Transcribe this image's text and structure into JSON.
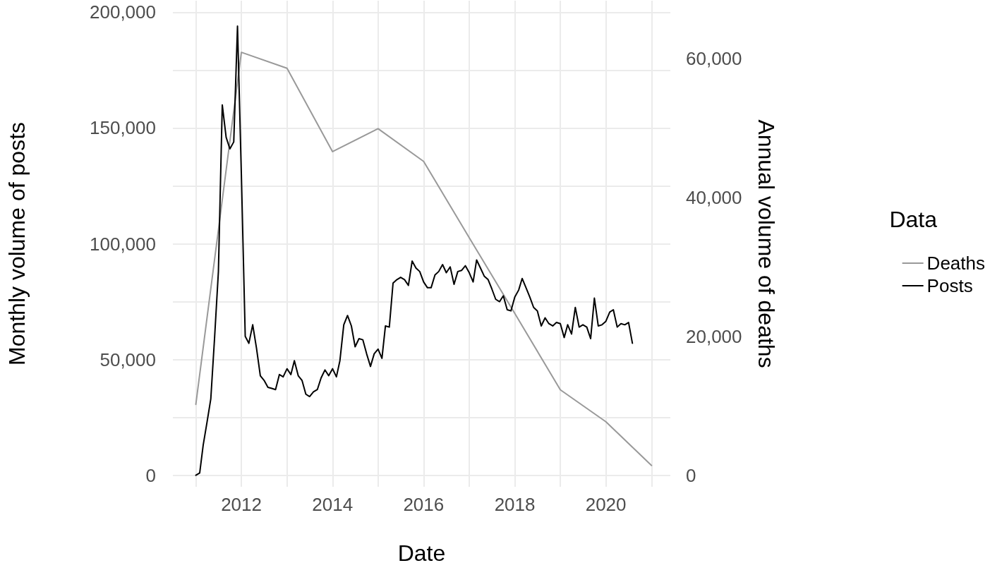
{
  "chart_data": {
    "type": "line",
    "xlabel": "Date",
    "ylabel": "Monthly volume of posts",
    "y2label": "Annual volume of deaths",
    "legend_title": "Data",
    "legend": "right",
    "grid": true,
    "xlim": [
      "2010-07",
      "2021-06"
    ],
    "xticks": [
      {
        "value": "2011",
        "label": null
      },
      "2012",
      {
        "value": "2013",
        "label": null
      },
      "2014",
      {
        "value": "2015",
        "label": null
      },
      "2016",
      {
        "value": "2017",
        "label": null
      },
      "2018",
      {
        "value": "2019",
        "label": null
      },
      "2020",
      {
        "value": "2021",
        "label": null
      }
    ],
    "ylim": [
      -5000,
      205000
    ],
    "yticks": [
      0,
      {
        "value": 25000,
        "label": null
      },
      {
        "value": 50000,
        "label": "50,000"
      },
      {
        "value": 75000,
        "label": null
      },
      {
        "value": 100000,
        "label": "100,000"
      },
      {
        "value": 125000,
        "label": null
      },
      {
        "value": 150000,
        "label": "150,000"
      },
      {
        "value": 175000,
        "label": null
      },
      {
        "value": 200000,
        "label": "200,000"
      }
    ],
    "y2lim": [
      -1667,
      68333
    ],
    "y2ticks": [
      0,
      {
        "value": 20000,
        "label": "20,000"
      },
      {
        "value": 40000,
        "label": "40,000"
      },
      {
        "value": 60000,
        "label": "60,000"
      }
    ],
    "series": [
      {
        "name": "Deaths",
        "color": "#999999",
        "axis": "y2",
        "x": [
          "2011",
          "2012",
          "2013",
          "2014",
          "2015",
          "2016",
          "2017",
          "2018",
          "2019",
          "2020",
          "2021"
        ],
        "values": [
          10200,
          60900,
          58600,
          46600,
          49900,
          45200,
          34200,
          23300,
          12300,
          7700,
          1400
        ]
      },
      {
        "name": "Posts",
        "color": "#000000",
        "axis": "y",
        "x": [
          "2011-01",
          "2011-02",
          "2011-03",
          "2011-04",
          "2011-05",
          "2011-06",
          "2011-07",
          "2011-08",
          "2011-09",
          "2011-10",
          "2011-11",
          "2011-12",
          "2012-01",
          "2012-02",
          "2012-03",
          "2012-04",
          "2012-05",
          "2012-06",
          "2012-07",
          "2012-08",
          "2012-09",
          "2012-10",
          "2012-11",
          "2012-12",
          "2013-01",
          "2013-02",
          "2013-03",
          "2013-04",
          "2013-05",
          "2013-06",
          "2013-07",
          "2013-08",
          "2013-09",
          "2013-10",
          "2013-11",
          "2013-12",
          "2014-01",
          "2014-02",
          "2014-03",
          "2014-04",
          "2014-05",
          "2014-06",
          "2014-07",
          "2014-08",
          "2014-09",
          "2014-10",
          "2014-11",
          "2014-12",
          "2015-01",
          "2015-02",
          "2015-03",
          "2015-04",
          "2015-05",
          "2015-06",
          "2015-07",
          "2015-08",
          "2015-09",
          "2015-10",
          "2015-11",
          "2015-12",
          "2016-01",
          "2016-02",
          "2016-03",
          "2016-04",
          "2016-05",
          "2016-06",
          "2016-07",
          "2016-08",
          "2016-09",
          "2016-10",
          "2016-11",
          "2016-12",
          "2017-01",
          "2017-02",
          "2017-03",
          "2017-04",
          "2017-05",
          "2017-06",
          "2017-07",
          "2017-08",
          "2017-09",
          "2017-10",
          "2017-11",
          "2017-12",
          "2018-01",
          "2018-02",
          "2018-03",
          "2018-04",
          "2018-05",
          "2018-06",
          "2018-07",
          "2018-08",
          "2018-09",
          "2018-10",
          "2018-11",
          "2018-12",
          "2019-01",
          "2019-02",
          "2019-03",
          "2019-04",
          "2019-05",
          "2019-06",
          "2019-07",
          "2019-08",
          "2019-09",
          "2019-10",
          "2019-11",
          "2019-12",
          "2020-01",
          "2020-02",
          "2020-03",
          "2020-04",
          "2020-05",
          "2020-06",
          "2020-07",
          "2020-08"
        ],
        "values": [
          0,
          1000,
          13000,
          23000,
          33000,
          60000,
          88000,
          160000,
          146000,
          141000,
          144000,
          194000,
          130000,
          60000,
          57000,
          65000,
          55000,
          43000,
          41000,
          38000,
          37500,
          37000,
          43500,
          42500,
          46000,
          43500,
          49500,
          43000,
          41000,
          35000,
          34000,
          36000,
          37000,
          42000,
          45500,
          43000,
          46000,
          42500,
          49500,
          65000,
          69000,
          64500,
          55500,
          59000,
          58500,
          52500,
          47000,
          52500,
          54500,
          50500,
          64500,
          64000,
          83000,
          84500,
          85500,
          84500,
          82000,
          92500,
          89500,
          88000,
          83500,
          81000,
          81000,
          86500,
          88000,
          91000,
          87500,
          90000,
          82500,
          88000,
          88500,
          90500,
          87500,
          83500,
          93000,
          89500,
          86000,
          84500,
          80500,
          76000,
          75000,
          77500,
          71500,
          71000,
          77000,
          80000,
          85000,
          81000,
          77000,
          72500,
          71000,
          64500,
          68000,
          65500,
          64500,
          66000,
          65500,
          59500,
          65000,
          61000,
          72500,
          64000,
          65000,
          64000,
          59000,
          76500,
          64500,
          65000,
          66500,
          70500,
          71500,
          64000,
          65500,
          65000,
          66000,
          57000
        ]
      }
    ]
  }
}
